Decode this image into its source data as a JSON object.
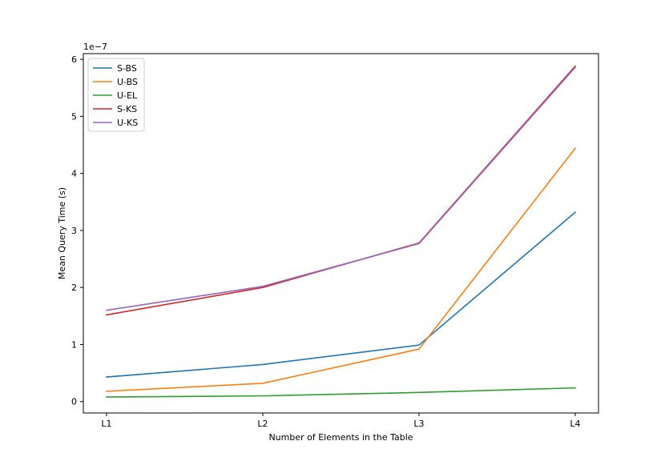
{
  "chart_data": {
    "type": "line",
    "title": "",
    "xlabel": "Number of Elements in the Table",
    "ylabel": "Mean Query Time (s)",
    "y_offset_text": "1e−7",
    "categories": [
      "L1",
      "L2",
      "L3",
      "L4"
    ],
    "ylim": [
      -0.2,
      6.1
    ],
    "yticks": [
      0,
      1,
      2,
      3,
      4,
      5,
      6
    ],
    "ytick_labels": [
      "0",
      "1",
      "2",
      "3",
      "4",
      "5",
      "6"
    ],
    "grid": false,
    "legend_position": "top-left",
    "series": [
      {
        "name": "S-BS",
        "color": "#1f77b4",
        "values": [
          0.43,
          0.65,
          0.99,
          3.32
        ]
      },
      {
        "name": "U-BS",
        "color": "#ff7f0e",
        "values": [
          0.18,
          0.32,
          0.92,
          4.44
        ]
      },
      {
        "name": "U-EL",
        "color": "#2ca02c",
        "values": [
          0.08,
          0.1,
          0.16,
          0.24
        ]
      },
      {
        "name": "S-KS",
        "color": "#d62728",
        "values": [
          1.52,
          2.0,
          2.78,
          5.88
        ]
      },
      {
        "name": "U-KS",
        "color": "#9467bd",
        "values": [
          1.6,
          2.02,
          2.77,
          5.86
        ]
      }
    ]
  }
}
